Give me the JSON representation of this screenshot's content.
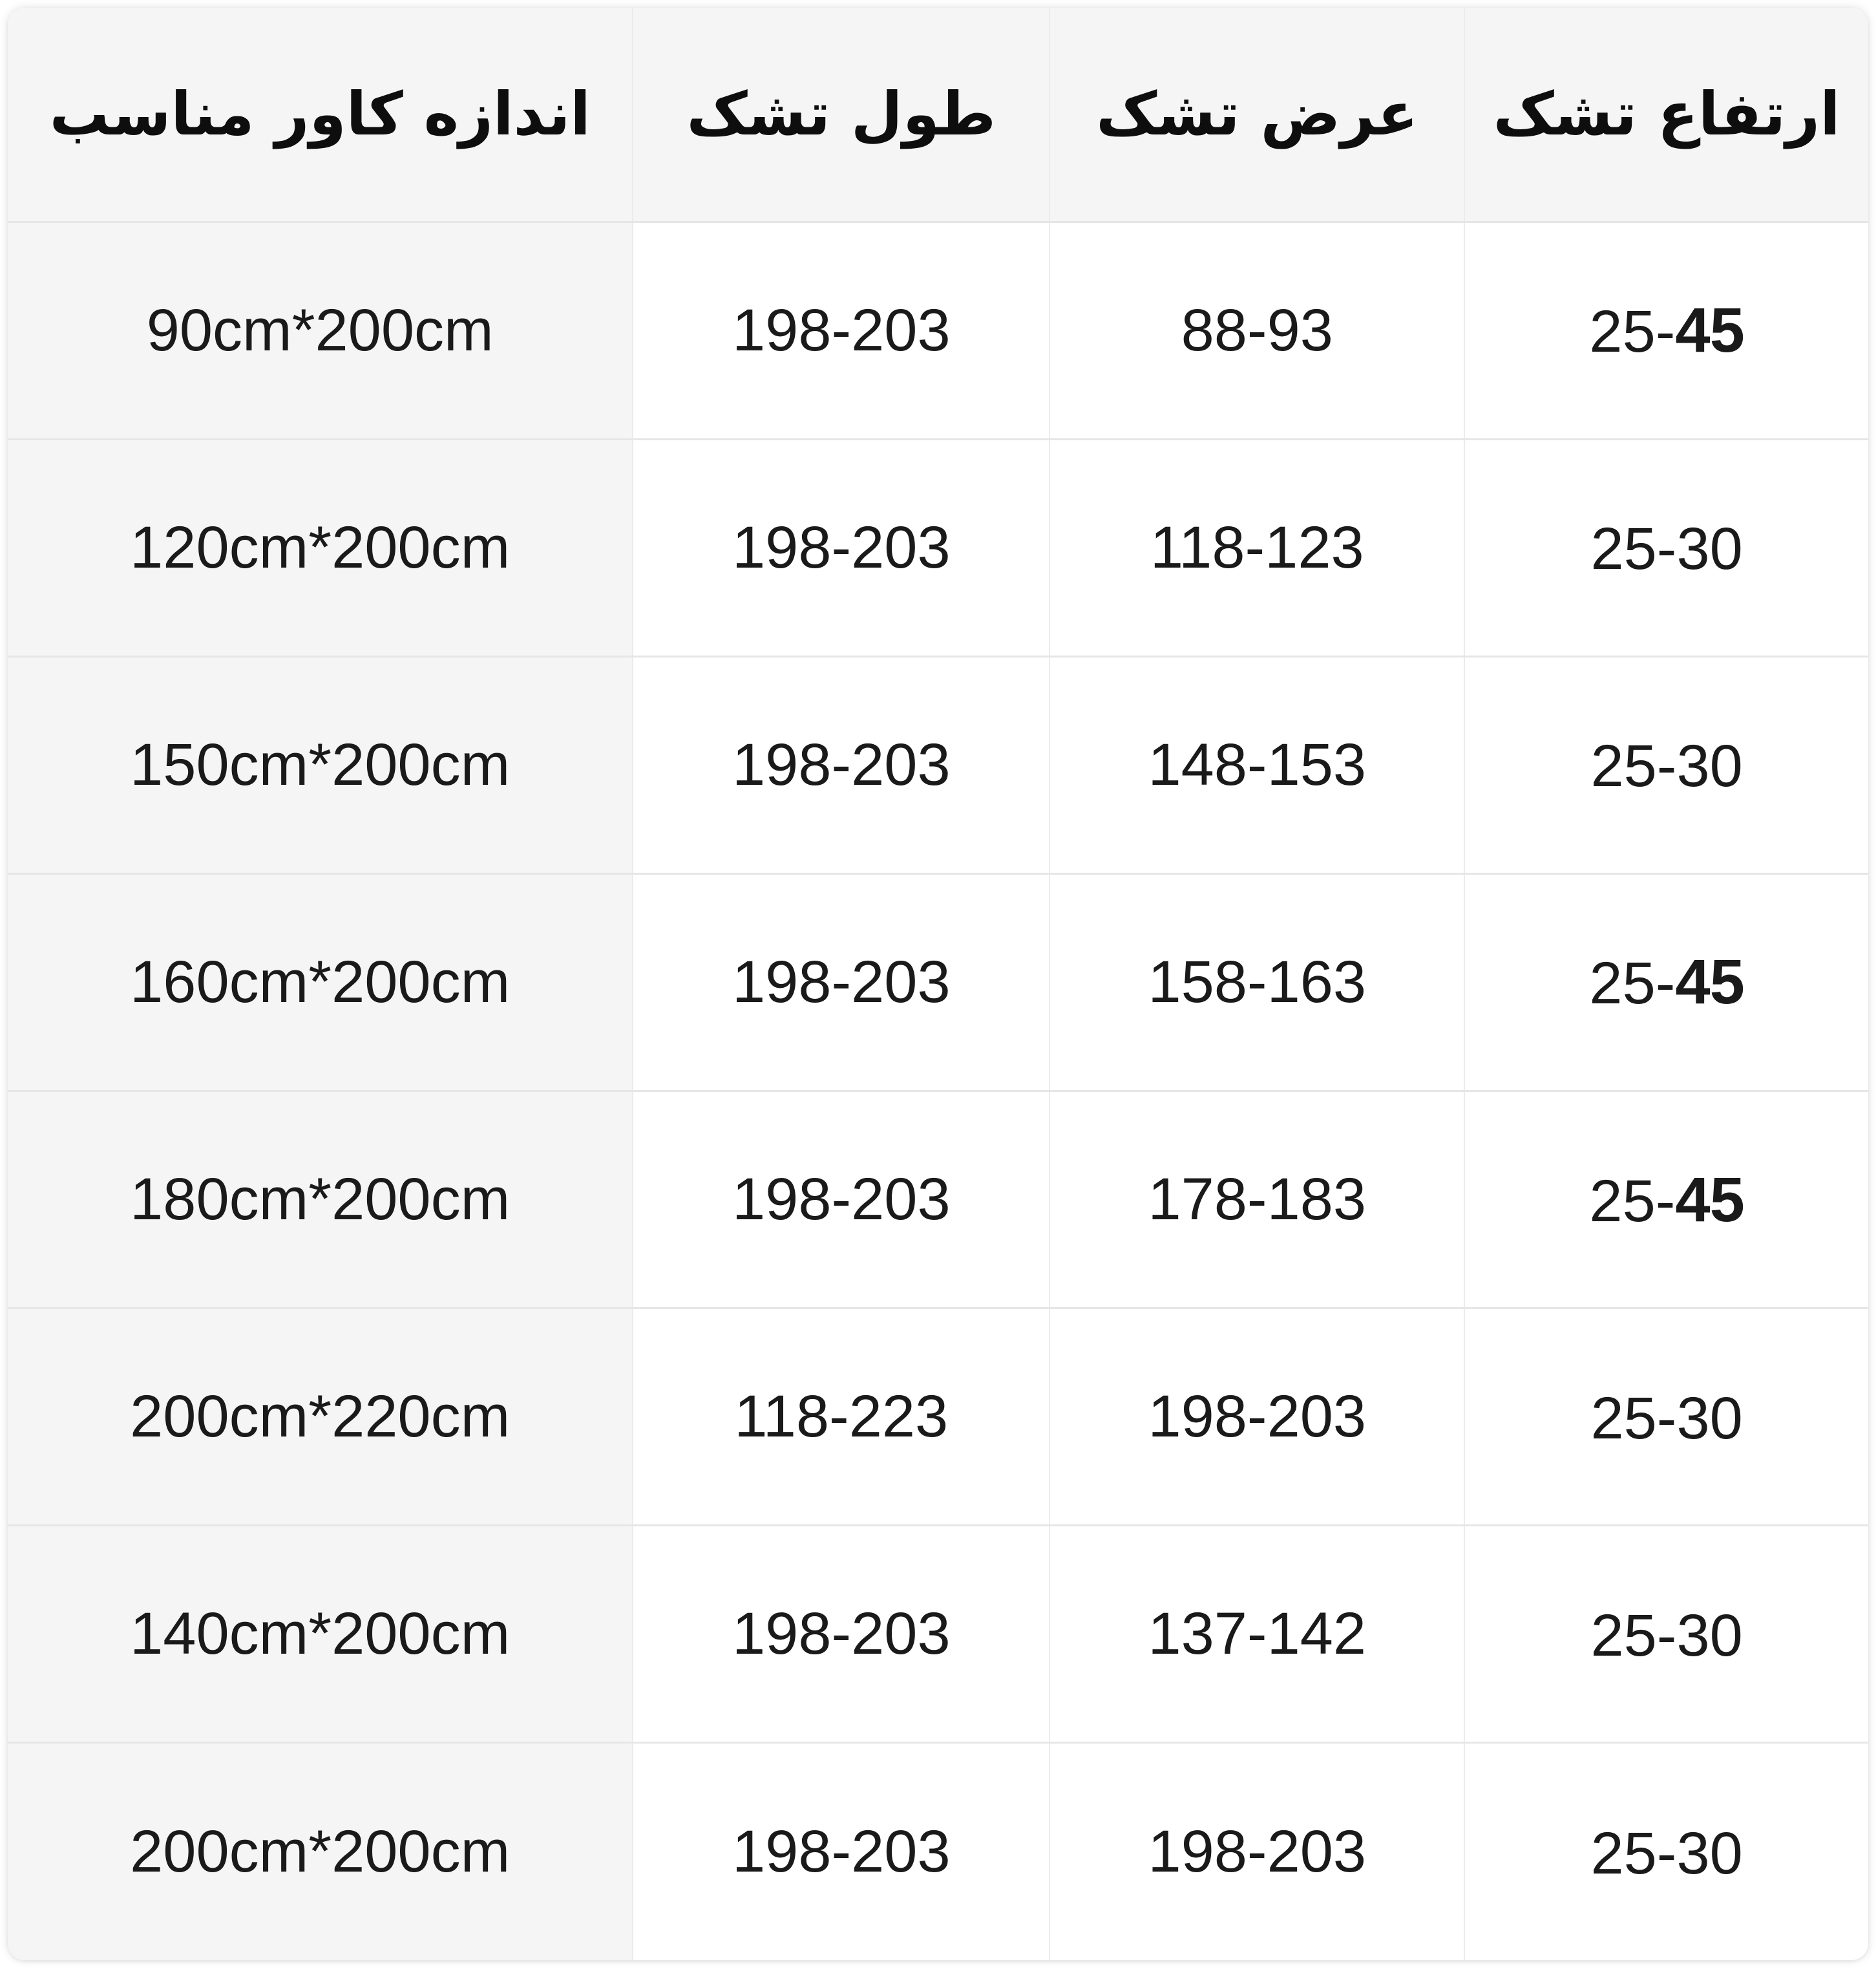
{
  "table": {
    "headers": {
      "height": "ارتفاع تشک",
      "width": "عرض تشک",
      "length": "طول تشک",
      "cover": "اندازه کاور مناسب"
    },
    "rows": [
      {
        "cover": "90cm*200cm",
        "length": "198-203",
        "width": "88-93",
        "h1": "25-",
        "h2": "45"
      },
      {
        "cover": "120cm*200cm",
        "length": "198-203",
        "width": "118-123",
        "h1": "25-30",
        "h2": ""
      },
      {
        "cover": "150cm*200cm",
        "length": "198-203",
        "width": "148-153",
        "h1": "25-30",
        "h2": ""
      },
      {
        "cover": "160cm*200cm",
        "length": "198-203",
        "width": "158-163",
        "h1": "25-",
        "h2": "45"
      },
      {
        "cover": "180cm*200cm",
        "length": "198-203",
        "width": "178-183",
        "h1": "25-",
        "h2": "45"
      },
      {
        "cover": "200cm*220cm",
        "length": "118-223",
        "width": "198-203",
        "h1": "25-30",
        "h2": ""
      },
      {
        "cover": "140cm*200cm",
        "length": "198-203",
        "width": "137-142",
        "h1": "25-30",
        "h2": ""
      },
      {
        "cover": "200cm*200cm",
        "length": "198-203",
        "width": "198-203",
        "h1": "25-30",
        "h2": ""
      }
    ]
  },
  "colors": {
    "header_bg": "#f5f5f6",
    "cover_column_bg": "#f5f5f6",
    "row_line": "#e6e6e6",
    "column_line": "#ebebeb",
    "text": "#1a1a1a",
    "page_bg": "#ffffff"
  },
  "chart_data": {
    "type": "table",
    "layout": "rtl",
    "columns": [
      "ارتفاع تشک",
      "عرض تشک",
      "طول تشک",
      "اندازه کاور مناسب"
    ],
    "rows": [
      [
        "25-45",
        "88-93",
        "198-203",
        "90cm*200cm"
      ],
      [
        "25-30",
        "118-123",
        "198-203",
        "120cm*200cm"
      ],
      [
        "25-30",
        "148-153",
        "198-203",
        "150cm*200cm"
      ],
      [
        "25-45",
        "158-163",
        "198-203",
        "160cm*200cm"
      ],
      [
        "25-45",
        "178-183",
        "198-203",
        "180cm*200cm"
      ],
      [
        "25-30",
        "198-203",
        "118-223",
        "200cm*220cm"
      ],
      [
        "25-30",
        "137-142",
        "198-203",
        "140cm*200cm"
      ],
      [
        "25-30",
        "198-203",
        "198-203",
        "200cm*200cm"
      ]
    ]
  }
}
